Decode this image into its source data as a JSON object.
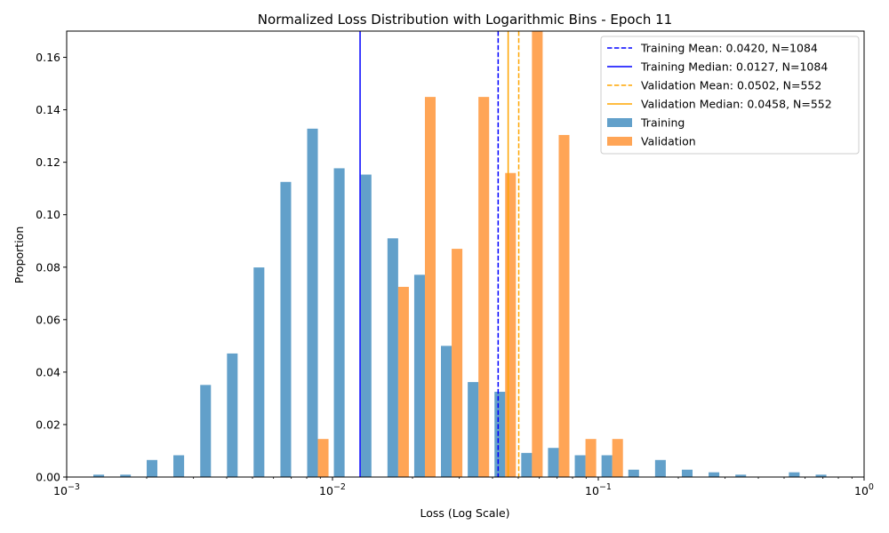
{
  "chart_data": {
    "type": "bar",
    "title": "Normalized Loss Distribution with Logarithmic Bins - Epoch 11",
    "xlabel": "Loss (Log Scale)",
    "ylabel": "Proportion",
    "xscale": "log",
    "xlim": [
      0.001,
      1
    ],
    "ylim": [
      0,
      0.17
    ],
    "grid": false,
    "legend_position": "top-right",
    "x_ticks": [
      {
        "value": 0.001,
        "base": "10",
        "exp": "−3"
      },
      {
        "value": 0.01,
        "base": "10",
        "exp": "−2"
      },
      {
        "value": 0.1,
        "base": "10",
        "exp": "−1"
      },
      {
        "value": 1,
        "base": "10",
        "exp": "0"
      }
    ],
    "y_ticks": [
      "0.00",
      "0.02",
      "0.04",
      "0.06",
      "0.08",
      "0.10",
      "0.12",
      "0.14",
      "0.16"
    ],
    "bin_edges": [
      0.001,
      0.00126,
      0.00159,
      0.002,
      0.00252,
      0.00318,
      0.00401,
      0.00505,
      0.00637,
      0.00803,
      0.01012,
      0.01277,
      0.0161,
      0.0203,
      0.02559,
      0.03227,
      0.04069,
      0.0513,
      0.06469,
      0.08157,
      0.10285,
      0.12969,
      0.16353,
      0.2062,
      0.26,
      0.32785,
      0.4134,
      0.52126,
      0.65727,
      0.82878,
      1.0
    ],
    "series": [
      {
        "name": "Training",
        "color": "#1f77b4",
        "opacity": 0.7,
        "values": [
          0,
          0.0009,
          0.0009,
          0.0065,
          0.0083,
          0.0351,
          0.0471,
          0.0799,
          0.1125,
          0.1328,
          0.1177,
          0.1153,
          0.091,
          0.0771,
          0.05,
          0.0362,
          0.0325,
          0.0092,
          0.0111,
          0.0083,
          0.0083,
          0.0028,
          0.0065,
          0.0028,
          0.0018,
          0.0009,
          0,
          0.0018,
          0.0009,
          0
        ]
      },
      {
        "name": "Validation",
        "color": "#ff7f0e",
        "opacity": 0.7,
        "values": [
          0,
          0,
          0,
          0,
          0,
          0,
          0,
          0,
          0,
          0.0145,
          0,
          0,
          0.0725,
          0.1449,
          0.087,
          0.1449,
          0.1159,
          0.1739,
          0.1304,
          0.0145,
          0.0145,
          0,
          0,
          0,
          0,
          0,
          0,
          0,
          0,
          0
        ]
      }
    ],
    "reference_lines": [
      {
        "name": "Training Mean: 0.0420, N=1084",
        "x": 0.042,
        "color": "#0000ff",
        "style": "dashed"
      },
      {
        "name": "Training Median: 0.0127, N=1084",
        "x": 0.0127,
        "color": "#0000ff",
        "style": "solid"
      },
      {
        "name": "Validation Mean: 0.0502, N=552",
        "x": 0.0502,
        "color": "#ffa500",
        "style": "dashed"
      },
      {
        "name": "Validation Median: 0.0458, N=552",
        "x": 0.0458,
        "color": "#ffa500",
        "style": "solid"
      }
    ]
  }
}
